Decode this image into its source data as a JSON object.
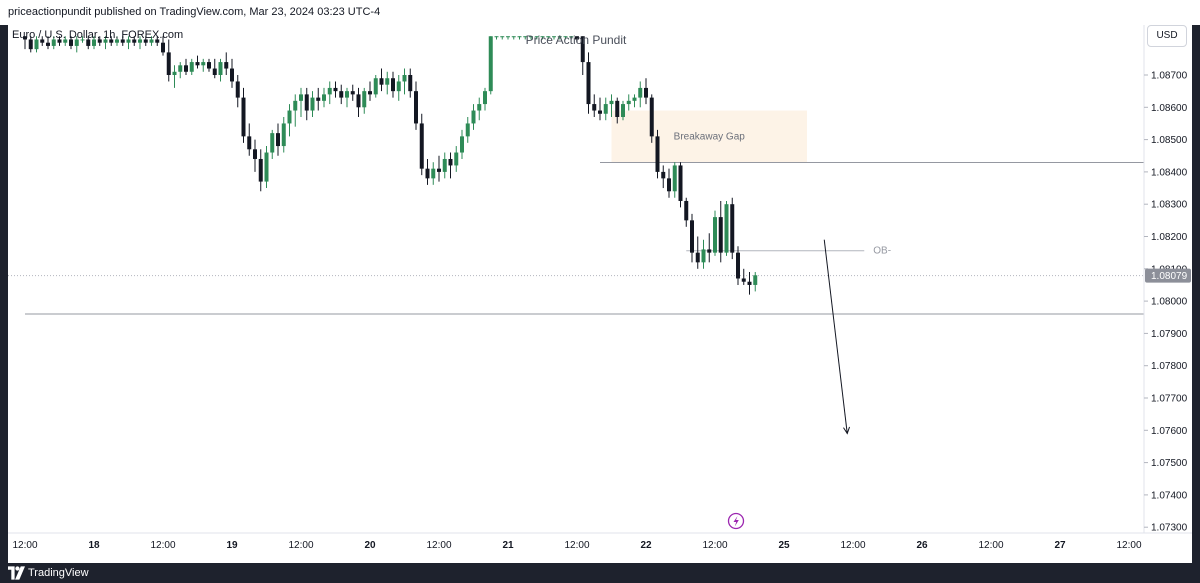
{
  "header": {
    "published": "priceactionpundit published on TradingView.com, Mar 23, 2024 03:23 UTC-4",
    "symbol": "Euro / U.S. Dollar, 1h, FOREX.com",
    "watermark": "Price Action Pundit",
    "currency": "USD"
  },
  "footer": {
    "brand": "TradingView"
  },
  "colors": {
    "up": "#2e8b57",
    "down": "#131722",
    "zone": "#fdf3e7",
    "grid": "#ffffff"
  },
  "chart_data": {
    "type": "candlestick",
    "title": "Euro / U.S. Dollar, 1h, FOREX.com",
    "ylim": [
      1.0725,
      1.0882
    ],
    "y_ticks": [
      "1.07300",
      "1.07400",
      "1.07500",
      "1.07600",
      "1.07700",
      "1.07800",
      "1.07900",
      "1.08000",
      "1.08100",
      "1.08200",
      "1.08300",
      "1.08400",
      "1.08500",
      "1.08600",
      "1.08700"
    ],
    "x_ticks": [
      {
        "i": 0,
        "label": "12:00",
        "major": false
      },
      {
        "i": 12,
        "label": "18",
        "major": true
      },
      {
        "i": 24,
        "label": "12:00",
        "major": false
      },
      {
        "i": 36,
        "label": "19",
        "major": true
      },
      {
        "i": 48,
        "label": "12:00",
        "major": false
      },
      {
        "i": 60,
        "label": "20",
        "major": true
      },
      {
        "i": 72,
        "label": "12:00",
        "major": false
      },
      {
        "i": 84,
        "label": "21",
        "major": true
      },
      {
        "i": 96,
        "label": "12:00",
        "major": false
      },
      {
        "i": 108,
        "label": "22",
        "major": true
      },
      {
        "i": 120,
        "label": "12:00",
        "major": false
      },
      {
        "i": 132,
        "label": "25",
        "major": true
      },
      {
        "i": 144,
        "label": "12:00",
        "major": false
      },
      {
        "i": 156,
        "label": "26",
        "major": true
      },
      {
        "i": 168,
        "label": "12:00",
        "major": false
      },
      {
        "i": 180,
        "label": "27",
        "major": true
      },
      {
        "i": 192,
        "label": "12:00",
        "major": false
      }
    ],
    "candles": [
      [
        1.0882,
        1.0882,
        1.0878,
        1.0881
      ],
      [
        1.0881,
        1.0882,
        1.0877,
        1.0878
      ],
      [
        1.0878,
        1.0882,
        1.0877,
        1.0881
      ],
      [
        1.0881,
        1.0882,
        1.0879,
        1.088
      ],
      [
        1.088,
        1.0882,
        1.0878,
        1.0879
      ],
      [
        1.0879,
        1.0882,
        1.0878,
        1.0881
      ],
      [
        1.0881,
        1.0882,
        1.0879,
        1.088
      ],
      [
        1.088,
        1.0882,
        1.0879,
        1.0881
      ],
      [
        1.0881,
        1.0882,
        1.0878,
        1.0879
      ],
      [
        1.0879,
        1.0882,
        1.0877,
        1.0881
      ],
      [
        1.0881,
        1.0882,
        1.088,
        1.0881
      ],
      [
        1.0881,
        1.0882,
        1.0878,
        1.0879
      ],
      [
        1.0879,
        1.0882,
        1.0878,
        1.0881
      ],
      [
        1.0881,
        1.0882,
        1.0879,
        1.088
      ],
      [
        1.088,
        1.0882,
        1.0878,
        1.0881
      ],
      [
        1.0881,
        1.0882,
        1.0879,
        1.088
      ],
      [
        1.088,
        1.0882,
        1.0879,
        1.0881
      ],
      [
        1.0881,
        1.0882,
        1.0879,
        1.088
      ],
      [
        1.088,
        1.0882,
        1.0878,
        1.0881
      ],
      [
        1.0881,
        1.0882,
        1.0879,
        1.088
      ],
      [
        1.088,
        1.0882,
        1.0878,
        1.0881
      ],
      [
        1.0881,
        1.0882,
        1.0879,
        1.088
      ],
      [
        1.088,
        1.0882,
        1.0879,
        1.0881
      ],
      [
        1.0881,
        1.0882,
        1.0879,
        1.088
      ],
      [
        1.088,
        1.0882,
        1.0876,
        1.0877
      ],
      [
        1.0877,
        1.0881,
        1.0868,
        1.087
      ],
      [
        1.087,
        1.0873,
        1.0866,
        1.0871
      ],
      [
        1.0871,
        1.0874,
        1.0869,
        1.0873
      ],
      [
        1.0873,
        1.0875,
        1.087,
        1.0871
      ],
      [
        1.0871,
        1.0875,
        1.087,
        1.0874
      ],
      [
        1.0874,
        1.0876,
        1.0872,
        1.0873
      ],
      [
        1.0873,
        1.0875,
        1.0871,
        1.0874
      ],
      [
        1.0874,
        1.0875,
        1.0871,
        1.0872
      ],
      [
        1.0872,
        1.0875,
        1.0869,
        1.087
      ],
      [
        1.087,
        1.0875,
        1.0868,
        1.0874
      ],
      [
        1.0874,
        1.0877,
        1.087,
        1.0872
      ],
      [
        1.0872,
        1.0875,
        1.0866,
        1.0868
      ],
      [
        1.0868,
        1.087,
        1.086,
        1.0863
      ],
      [
        1.0863,
        1.0866,
        1.0849,
        1.0851
      ],
      [
        1.0851,
        1.0855,
        1.0845,
        1.0847
      ],
      [
        1.0847,
        1.085,
        1.084,
        1.0844
      ],
      [
        1.0844,
        1.0847,
        1.0834,
        1.0837
      ],
      [
        1.0837,
        1.0848,
        1.0835,
        1.0846
      ],
      [
        1.0846,
        1.0853,
        1.0844,
        1.0852
      ],
      [
        1.0852,
        1.0855,
        1.0845,
        1.0848
      ],
      [
        1.0848,
        1.0857,
        1.0846,
        1.0855
      ],
      [
        1.0855,
        1.0861,
        1.0851,
        1.0859
      ],
      [
        1.0859,
        1.0864,
        1.0854,
        1.0862
      ],
      [
        1.0862,
        1.0866,
        1.0857,
        1.0864
      ],
      [
        1.0864,
        1.0866,
        1.0856,
        1.0859
      ],
      [
        1.0859,
        1.0865,
        1.0857,
        1.0863
      ],
      [
        1.0863,
        1.0866,
        1.0859,
        1.0862
      ],
      [
        1.0862,
        1.0866,
        1.086,
        1.0864
      ],
      [
        1.0864,
        1.0868,
        1.0861,
        1.0866
      ],
      [
        1.0866,
        1.0868,
        1.0863,
        1.0865
      ],
      [
        1.0865,
        1.0867,
        1.0861,
        1.0863
      ],
      [
        1.0863,
        1.0866,
        1.086,
        1.0865
      ],
      [
        1.0865,
        1.0867,
        1.0862,
        1.0864
      ],
      [
        1.0864,
        1.0866,
        1.0857,
        1.086
      ],
      [
        1.086,
        1.0866,
        1.0858,
        1.0865
      ],
      [
        1.0865,
        1.0868,
        1.0862,
        1.0864
      ],
      [
        1.0864,
        1.087,
        1.0863,
        1.0869
      ],
      [
        1.0869,
        1.0872,
        1.0865,
        1.0867
      ],
      [
        1.0867,
        1.0871,
        1.0864,
        1.0869
      ],
      [
        1.0869,
        1.0871,
        1.0863,
        1.0865
      ],
      [
        1.0865,
        1.087,
        1.0862,
        1.0868
      ],
      [
        1.0868,
        1.0872,
        1.0864,
        1.087
      ],
      [
        1.087,
        1.0872,
        1.0863,
        1.0865
      ],
      [
        1.0865,
        1.0868,
        1.0853,
        1.0855
      ],
      [
        1.0855,
        1.0858,
        1.0839,
        1.0841
      ],
      [
        1.0841,
        1.0844,
        1.0836,
        1.0838
      ],
      [
        1.0838,
        1.0843,
        1.0836,
        1.0841
      ],
      [
        1.0841,
        1.0845,
        1.0837,
        1.084
      ],
      [
        1.084,
        1.0846,
        1.0838,
        1.0844
      ],
      [
        1.0844,
        1.0846,
        1.0838,
        1.0842
      ],
      [
        1.0842,
        1.0848,
        1.084,
        1.0846
      ],
      [
        1.0846,
        1.0853,
        1.0844,
        1.0851
      ],
      [
        1.0851,
        1.0857,
        1.0849,
        1.0855
      ],
      [
        1.0855,
        1.0861,
        1.0853,
        1.0859
      ],
      [
        1.0859,
        1.0863,
        1.0856,
        1.0861
      ],
      [
        1.0861,
        1.0866,
        1.0859,
        1.0865
      ],
      [
        1.0865,
        1.0882,
        1.0864,
        1.0882
      ],
      [
        1.0882,
        1.0882,
        1.0881,
        1.0882
      ],
      [
        1.0882,
        1.0882,
        1.0881,
        1.0882
      ],
      [
        1.0882,
        1.0882,
        1.0881,
        1.0882
      ],
      [
        1.0882,
        1.0882,
        1.0881,
        1.0882
      ],
      [
        1.0882,
        1.0882,
        1.0881,
        1.0882
      ],
      [
        1.0882,
        1.0882,
        1.0881,
        1.0882
      ],
      [
        1.0882,
        1.0882,
        1.0881,
        1.0882
      ],
      [
        1.0882,
        1.0882,
        1.0881,
        1.0882
      ],
      [
        1.0882,
        1.0882,
        1.0881,
        1.0882
      ],
      [
        1.0882,
        1.0882,
        1.0881,
        1.0882
      ],
      [
        1.0882,
        1.0882,
        1.0881,
        1.0882
      ],
      [
        1.0882,
        1.0882,
        1.0881,
        1.0882
      ],
      [
        1.0882,
        1.0882,
        1.0881,
        1.0882
      ],
      [
        1.0882,
        1.0882,
        1.0881,
        1.0882
      ],
      [
        1.0882,
        1.0882,
        1.088,
        1.0881
      ],
      [
        1.0882,
        1.0882,
        1.087,
        1.0874
      ],
      [
        1.0874,
        1.0877,
        1.0858,
        1.0861
      ],
      [
        1.0861,
        1.0864,
        1.0857,
        1.0859
      ],
      [
        1.0859,
        1.0863,
        1.0856,
        1.0858
      ],
      [
        1.0858,
        1.0863,
        1.0856,
        1.0861
      ],
      [
        1.0861,
        1.0864,
        1.0857,
        1.0862
      ],
      [
        1.0862,
        1.0863,
        1.0855,
        1.0857
      ],
      [
        1.0857,
        1.0862,
        1.0856,
        1.0861
      ],
      [
        1.0861,
        1.0864,
        1.0859,
        1.0862
      ],
      [
        1.0862,
        1.0864,
        1.086,
        1.0863
      ],
      [
        1.0863,
        1.0868,
        1.086,
        1.0866
      ],
      [
        1.0866,
        1.0869,
        1.0861,
        1.0863
      ],
      [
        1.0863,
        1.0864,
        1.0849,
        1.0851
      ],
      [
        1.0851,
        1.0853,
        1.0838,
        1.084
      ],
      [
        1.084,
        1.0842,
        1.0835,
        1.0838
      ],
      [
        1.0838,
        1.0841,
        1.0832,
        1.0834
      ],
      [
        1.0834,
        1.0843,
        1.0832,
        1.0842
      ],
      [
        1.0842,
        1.0843,
        1.0829,
        1.0831
      ],
      [
        1.0831,
        1.0832,
        1.0823,
        1.0825
      ],
      [
        1.0825,
        1.0827,
        1.0812,
        1.0815
      ],
      [
        1.0815,
        1.082,
        1.081,
        1.0812
      ],
      [
        1.0812,
        1.0819,
        1.081,
        1.0816
      ],
      [
        1.0816,
        1.0821,
        1.0812,
        1.0815
      ],
      [
        1.0815,
        1.0828,
        1.0814,
        1.0826
      ],
      [
        1.0826,
        1.0831,
        1.0812,
        1.0815
      ],
      [
        1.0815,
        1.0831,
        1.0814,
        1.083
      ],
      [
        1.083,
        1.0832,
        1.0813,
        1.0815
      ],
      [
        1.0815,
        1.0817,
        1.0805,
        1.0807
      ],
      [
        1.0807,
        1.081,
        1.0805,
        1.0806
      ],
      [
        1.0806,
        1.0809,
        1.0802,
        1.0805
      ],
      [
        1.0805,
        1.0809,
        1.0803,
        1.0808
      ]
    ],
    "levels": [
      {
        "price": 1.08429,
        "from": 100,
        "to": null,
        "name": "gap-top-level"
      },
      {
        "price": 1.0796,
        "from": 0,
        "to": null,
        "name": "support-level"
      }
    ],
    "annotations": {
      "zone": {
        "label": "Breakaway Gap",
        "top": 1.0859,
        "bottom": 1.0843,
        "from": 102,
        "to": 136
      },
      "ob": {
        "label": "OB-",
        "price": 1.08156,
        "from": 115,
        "to": 139
      },
      "arrow": {
        "from": {
          "i": 139,
          "price": 1.0819
        },
        "to": {
          "i": 143,
          "price": 1.0759
        }
      },
      "last_price": {
        "label": "1.08079",
        "value": 1.08079
      }
    }
  }
}
